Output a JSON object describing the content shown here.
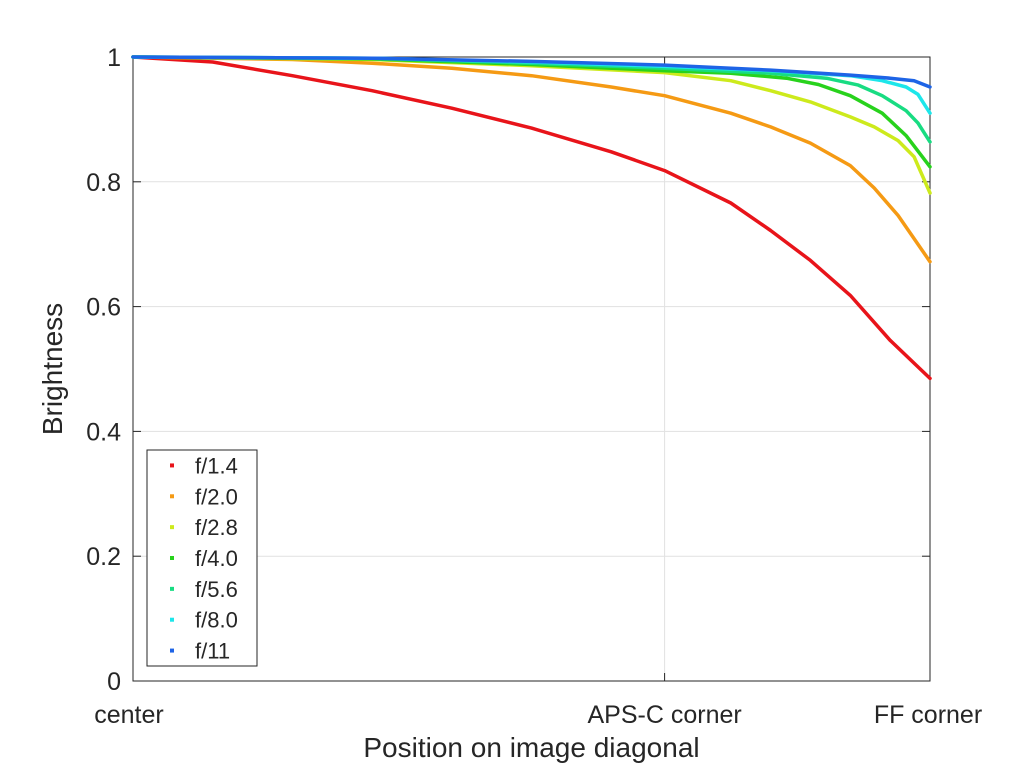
{
  "chart_data": {
    "type": "line",
    "title": "",
    "xlabel": "Position on image diagonal",
    "ylabel": "Brightness",
    "x_ticks": [
      {
        "label": "center",
        "x": 0.0
      },
      {
        "label": "APS-C corner",
        "x": 0.667
      },
      {
        "label": "FF corner",
        "x": 1.0
      }
    ],
    "xlim": [
      0,
      1
    ],
    "ylim": [
      0,
      1
    ],
    "y_ticks": [
      "0",
      "0.2",
      "0.4",
      "0.6",
      "0.8",
      "1"
    ],
    "y_tick_values": [
      0,
      0.2,
      0.4,
      0.6,
      0.8,
      1
    ],
    "grid": true,
    "legend_position": "bottom-left",
    "series": [
      {
        "name": "f/1.4",
        "color": "#e8141a",
        "x": [
          0,
          0.1,
          0.2,
          0.3,
          0.4,
          0.5,
          0.6,
          0.667,
          0.75,
          0.8,
          0.85,
          0.9,
          0.95,
          1.0
        ],
        "y": [
          1.0,
          0.992,
          0.97,
          0.946,
          0.918,
          0.886,
          0.848,
          0.818,
          0.766,
          0.722,
          0.674,
          0.618,
          0.546,
          0.485
        ]
      },
      {
        "name": "f/2.0",
        "color": "#f59a14",
        "x": [
          0,
          0.2,
          0.3,
          0.4,
          0.5,
          0.6,
          0.667,
          0.75,
          0.8,
          0.85,
          0.9,
          0.93,
          0.96,
          1.0
        ],
        "y": [
          1.0,
          0.996,
          0.99,
          0.982,
          0.97,
          0.952,
          0.938,
          0.91,
          0.888,
          0.862,
          0.826,
          0.79,
          0.746,
          0.672
        ]
      },
      {
        "name": "f/2.8",
        "color": "#cdea1c",
        "x": [
          0,
          0.3,
          0.5,
          0.667,
          0.75,
          0.8,
          0.85,
          0.9,
          0.93,
          0.96,
          0.98,
          1.0
        ],
        "y": [
          1.0,
          0.996,
          0.986,
          0.975,
          0.962,
          0.946,
          0.928,
          0.904,
          0.888,
          0.866,
          0.84,
          0.782
        ]
      },
      {
        "name": "f/4.0",
        "color": "#28d21c",
        "x": [
          0,
          0.3,
          0.5,
          0.667,
          0.75,
          0.82,
          0.86,
          0.9,
          0.94,
          0.97,
          1.0
        ],
        "y": [
          1.0,
          0.997,
          0.988,
          0.978,
          0.974,
          0.966,
          0.956,
          0.938,
          0.91,
          0.874,
          0.824
        ]
      },
      {
        "name": "f/5.6",
        "color": "#18dc82",
        "x": [
          0,
          0.3,
          0.5,
          0.667,
          0.8,
          0.87,
          0.91,
          0.94,
          0.97,
          0.985,
          1.0
        ],
        "y": [
          1.0,
          0.998,
          0.99,
          0.982,
          0.974,
          0.966,
          0.955,
          0.938,
          0.914,
          0.894,
          0.864
        ]
      },
      {
        "name": "f/8.0",
        "color": "#1ce6ea",
        "x": [
          0,
          0.3,
          0.5,
          0.667,
          0.8,
          0.9,
          0.94,
          0.97,
          0.985,
          1.0
        ],
        "y": [
          1.0,
          0.998,
          0.992,
          0.985,
          0.978,
          0.97,
          0.962,
          0.952,
          0.94,
          0.91
        ]
      },
      {
        "name": "f/11",
        "color": "#1e64e6",
        "x": [
          0,
          0.3,
          0.5,
          0.667,
          0.8,
          0.9,
          0.95,
          0.98,
          1.0
        ],
        "y": [
          1.0,
          0.998,
          0.993,
          0.987,
          0.979,
          0.971,
          0.966,
          0.962,
          0.952
        ]
      }
    ]
  }
}
